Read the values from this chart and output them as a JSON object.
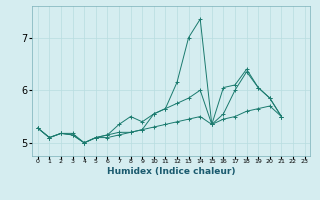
{
  "xlabel": "Humidex (Indice chaleur)",
  "ylabel": "",
  "bg_color": "#d5edf0",
  "line_color": "#1a7a6e",
  "grid_color": "#b8dde0",
  "xlim": [
    -0.5,
    23.5
  ],
  "ylim": [
    4.75,
    7.6
  ],
  "yticks": [
    5,
    6,
    7
  ],
  "xticks": [
    0,
    1,
    2,
    3,
    4,
    5,
    6,
    7,
    8,
    9,
    10,
    11,
    12,
    13,
    14,
    15,
    16,
    17,
    18,
    19,
    20,
    21,
    22,
    23
  ],
  "series": [
    [
      5.28,
      5.1,
      5.18,
      5.18,
      5.0,
      5.1,
      5.15,
      5.2,
      5.2,
      5.25,
      5.55,
      5.65,
      6.15,
      7.0,
      7.35,
      5.35,
      6.05,
      6.1,
      6.4,
      6.05,
      5.85,
      5.5
    ],
    [
      5.28,
      5.1,
      5.18,
      5.15,
      5.0,
      5.1,
      5.15,
      5.35,
      5.5,
      5.4,
      5.55,
      5.65,
      5.75,
      5.85,
      6.0,
      5.35,
      5.55,
      6.0,
      6.35,
      6.05,
      5.85,
      5.5
    ],
    [
      5.28,
      5.1,
      5.18,
      5.15,
      5.0,
      5.1,
      5.1,
      5.15,
      5.2,
      5.25,
      5.3,
      5.35,
      5.4,
      5.45,
      5.5,
      5.35,
      5.45,
      5.5,
      5.6,
      5.65,
      5.7,
      5.5
    ]
  ]
}
